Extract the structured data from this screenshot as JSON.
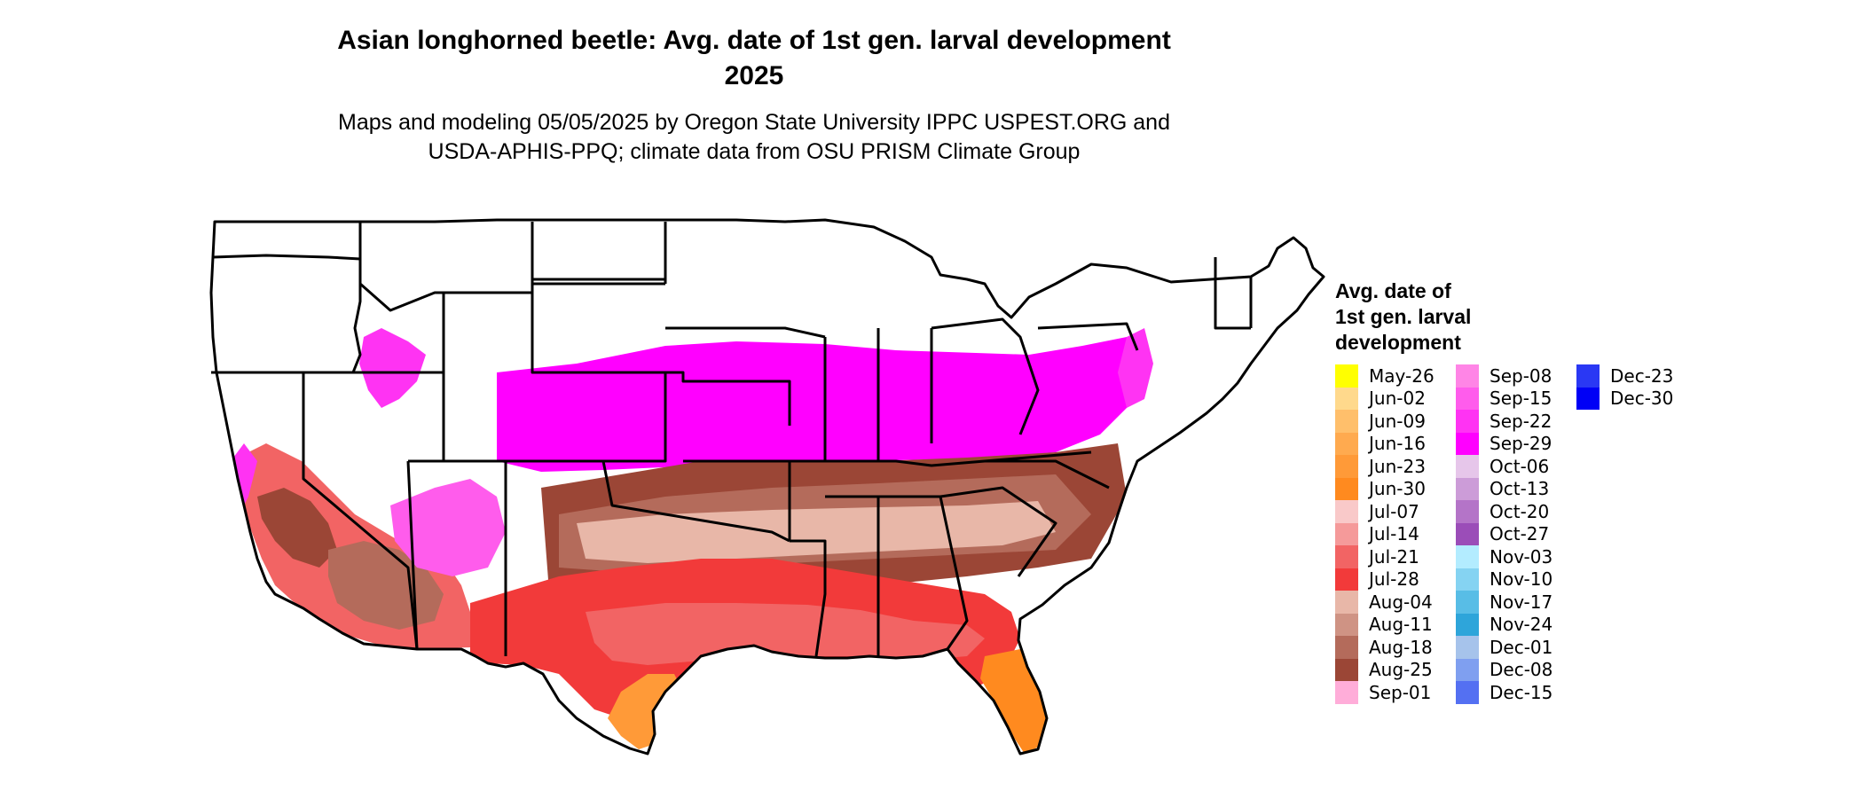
{
  "header": {
    "title_line1": "Asian longhorned beetle: Avg. date of 1st gen. larval development",
    "title_line2": "2025",
    "subtitle_line1": "Maps and modeling 05/05/2025 by Oregon State University IPPC USPEST.ORG and",
    "subtitle_line2": "USDA-APHIS-PPQ; climate data from OSU PRISM Climate Group"
  },
  "legend": {
    "title_line1": "Avg. date of",
    "title_line2": "1st gen. larval",
    "title_line3": "development",
    "columns": [
      [
        {
          "label": "May-26",
          "color": "#ffff00"
        },
        {
          "label": "Jun-02",
          "color": "#ffd98c"
        },
        {
          "label": "Jun-09",
          "color": "#ffbf6b"
        },
        {
          "label": "Jun-16",
          "color": "#ffaa4f"
        },
        {
          "label": "Jun-23",
          "color": "#ff9a38"
        },
        {
          "label": "Jun-30",
          "color": "#ff8a1f"
        },
        {
          "label": "Jul-07",
          "color": "#f9c9c9"
        },
        {
          "label": "Jul-14",
          "color": "#f59a9a"
        },
        {
          "label": "Jul-21",
          "color": "#f26464"
        },
        {
          "label": "Jul-28",
          "color": "#f23a3a"
        },
        {
          "label": "Aug-04",
          "color": "#e8b7a8"
        },
        {
          "label": "Aug-11",
          "color": "#cf9384"
        },
        {
          "label": "Aug-18",
          "color": "#b46b5b"
        },
        {
          "label": "Aug-25",
          "color": "#9b4636"
        },
        {
          "label": "Sep-01",
          "color": "#ffadd9"
        }
      ],
      [
        {
          "label": "Sep-08",
          "color": "#ff85e6"
        },
        {
          "label": "Sep-15",
          "color": "#ff5cec"
        },
        {
          "label": "Sep-22",
          "color": "#ff33f3"
        },
        {
          "label": "Sep-29",
          "color": "#ff00ff"
        },
        {
          "label": "Oct-06",
          "color": "#e6c6ea"
        },
        {
          "label": "Oct-13",
          "color": "#cc9cd8"
        },
        {
          "label": "Oct-20",
          "color": "#b474c8"
        },
        {
          "label": "Oct-27",
          "color": "#9b4db8"
        },
        {
          "label": "Nov-03",
          "color": "#b3ecff"
        },
        {
          "label": "Nov-10",
          "color": "#85d3f2"
        },
        {
          "label": "Nov-17",
          "color": "#58bde6"
        },
        {
          "label": "Nov-24",
          "color": "#2ea5da"
        },
        {
          "label": "Dec-01",
          "color": "#a6c3eb"
        },
        {
          "label": "Dec-08",
          "color": "#7f9ff0"
        },
        {
          "label": "Dec-15",
          "color": "#5470f2"
        }
      ],
      [
        {
          "label": "Dec-23",
          "color": "#2a38f4"
        },
        {
          "label": "Dec-30",
          "color": "#0000f6"
        }
      ]
    ]
  }
}
